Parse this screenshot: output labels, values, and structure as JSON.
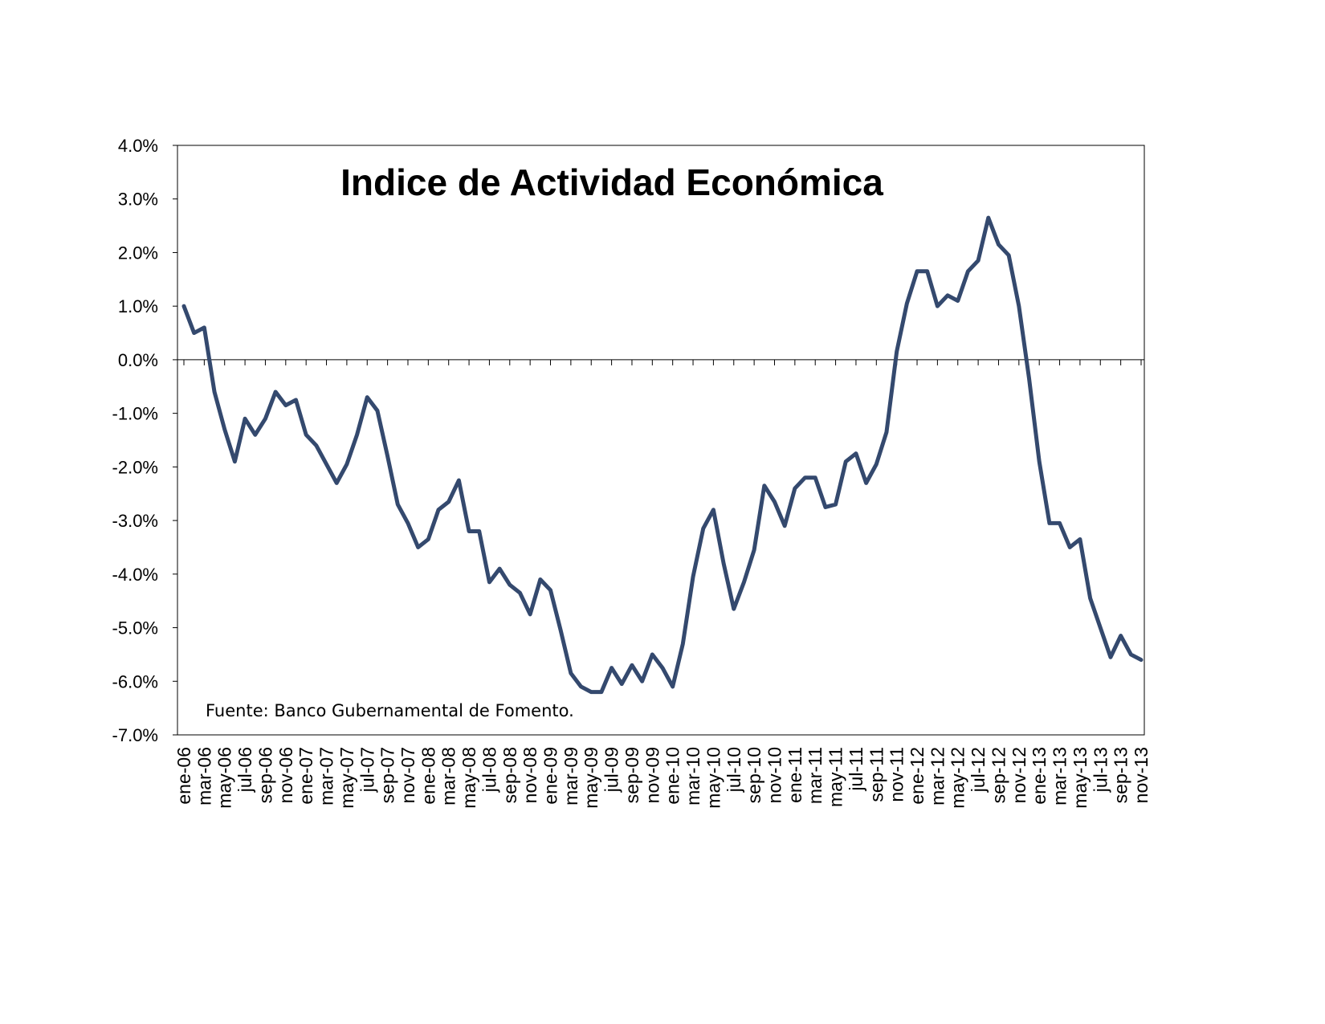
{
  "chart_data": {
    "type": "line",
    "title": "Indice de Actividad Económica",
    "annotation": "Fuente: Banco Gubernamental de Fomento.",
    "xlabel": "",
    "ylabel": "",
    "ylim": [
      -7.0,
      4.0
    ],
    "ytick_step": 1.0,
    "ytick_labels": [
      "4.0%",
      "3.0%",
      "2.0%",
      "1.0%",
      "0.0%",
      "-1.0%",
      "-2.0%",
      "-3.0%",
      "-4.0%",
      "-5.0%",
      "-6.0%",
      "-7.0%"
    ],
    "xtick_labels": [
      "ene-06",
      "mar-06",
      "may-06",
      "jul-06",
      "sep-06",
      "nov-06",
      "ene-07",
      "mar-07",
      "may-07",
      "jul-07",
      "sep-07",
      "nov-07",
      "ene-08",
      "mar-08",
      "may-08",
      "jul-08",
      "sep-08",
      "nov-08",
      "ene-09",
      "mar-09",
      "may-09",
      "jul-09",
      "sep-09",
      "nov-09",
      "ene-10",
      "mar-10",
      "may-10",
      "jul-10",
      "sep-10",
      "nov-10",
      "ene-11",
      "mar-11",
      "may-11",
      "jul-11",
      "sep-11",
      "nov-11",
      "ene-12",
      "mar-12",
      "may-12",
      "jul-12",
      "sep-12",
      "nov-12",
      "ene-13",
      "mar-13",
      "may-13",
      "jul-13",
      "sep-13",
      "nov-13"
    ],
    "line_color": "#34496e",
    "grid": false,
    "legend": "none",
    "series": [
      {
        "values": [
          1.0,
          0.5,
          0.6,
          -0.6,
          -1.3,
          -1.9,
          -1.1,
          -1.4,
          -1.1,
          -0.6,
          -0.85,
          -0.75,
          -1.4,
          -1.6,
          -1.95,
          -2.3,
          -1.95,
          -1.4,
          -0.7,
          -0.95,
          -1.8,
          -2.7,
          -3.05,
          -3.5,
          -3.35,
          -2.8,
          -2.65,
          -2.25,
          -3.2,
          -3.2,
          -4.15,
          -3.9,
          -4.2,
          -4.35,
          -4.75,
          -4.1,
          -4.3,
          -5.05,
          -5.85,
          -6.1,
          -6.2,
          -6.2,
          -5.75,
          -6.05,
          -5.7,
          -6.0,
          -5.5,
          -5.75,
          -6.1,
          -5.3,
          -4.05,
          -3.15,
          -2.8,
          -3.8,
          -4.65,
          -4.15,
          -3.55,
          -2.35,
          -2.65,
          -3.1,
          -2.4,
          -2.2,
          -2.2,
          -2.75,
          -2.7,
          -1.9,
          -1.75,
          -2.3,
          -1.95,
          -1.35,
          0.15,
          1.05,
          1.65,
          1.65,
          1.0,
          1.2,
          1.1,
          1.65,
          1.85,
          2.65,
          2.15,
          1.95,
          1.0,
          -0.35,
          -1.9,
          -3.05,
          -3.05,
          -3.5,
          -3.35,
          -4.45,
          -5.0,
          -5.55,
          -5.15,
          -5.5,
          -5.6
        ]
      }
    ]
  }
}
